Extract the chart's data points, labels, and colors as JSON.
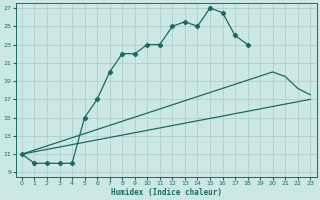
{
  "xlabel": "Humidex (Indice chaleur)",
  "bg_color": "#cce8e4",
  "line_color": "#1a6b5e",
  "grid_color": "#b0cfcb",
  "xlim": [
    -0.5,
    23.5
  ],
  "ylim": [
    8.5,
    27.5
  ],
  "xticks": [
    0,
    1,
    2,
    3,
    4,
    5,
    6,
    7,
    8,
    9,
    10,
    11,
    12,
    13,
    14,
    15,
    16,
    17,
    18,
    19,
    20,
    21,
    22,
    23
  ],
  "yticks": [
    9,
    11,
    13,
    15,
    17,
    19,
    21,
    23,
    25,
    27
  ],
  "curve1_x": [
    0,
    1,
    2,
    3,
    4,
    5,
    6,
    7,
    8,
    9,
    10,
    11,
    12,
    13,
    14,
    15,
    16,
    17,
    18
  ],
  "curve1_y": [
    11,
    10,
    10,
    10,
    10,
    15,
    17,
    20,
    22,
    22,
    23,
    23,
    25,
    25.5,
    25,
    27,
    26.5,
    24,
    23
  ],
  "curve2_x": [
    0,
    20,
    21,
    22,
    23
  ],
  "curve2_y": [
    11,
    20,
    19.5,
    18.2,
    17.5
  ],
  "curve3_x": [
    0,
    23
  ],
  "curve3_y": [
    11,
    17
  ]
}
